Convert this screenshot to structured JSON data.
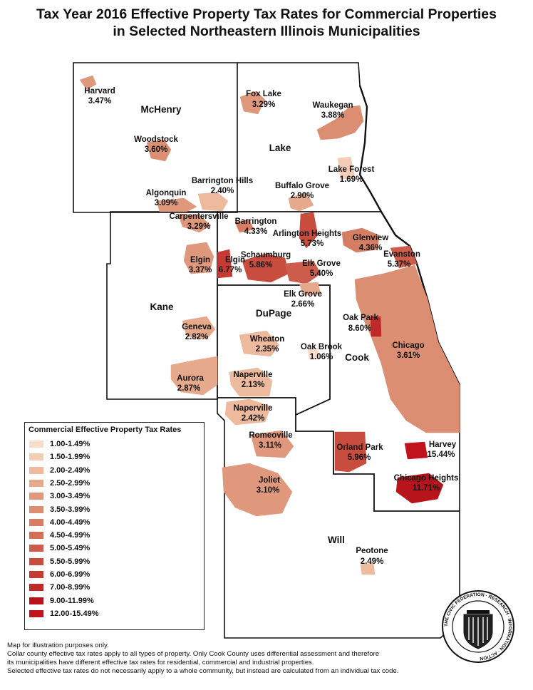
{
  "title": {
    "line1": "Tax Year 2016 Effective Property Tax Rates for Commercial Properties",
    "line2": "in Selected Northeastern Illinois Municipalities"
  },
  "counties": {
    "mchenry": "McHenry",
    "lake": "Lake",
    "kane": "Kane",
    "dupage": "DuPage",
    "cook": "Cook",
    "will": "Will"
  },
  "municipalities": [
    {
      "id": "harvard",
      "name": "Harvard",
      "rate": "3.47%",
      "color": "#E0987D"
    },
    {
      "id": "woodstock",
      "name": "Woodstock",
      "rate": "3.60%",
      "color": "#DC8E73"
    },
    {
      "id": "foxlake",
      "name": "Fox Lake",
      "rate": "3.29%",
      "color": "#E0987D"
    },
    {
      "id": "waukegan",
      "name": "Waukegan",
      "rate": "3.88%",
      "color": "#DC8E73"
    },
    {
      "id": "lakeforest",
      "name": "Lake Forest",
      "rate": "1.69%",
      "color": "#F3CDB6"
    },
    {
      "id": "barringtonhills",
      "name": "Barrington Hills",
      "rate": "2.40%",
      "color": "#EDBA9E"
    },
    {
      "id": "buffalogrove",
      "name": "Buffalo Grove",
      "rate": "2.90%",
      "color": "#E6A98C"
    },
    {
      "id": "algonquin",
      "name": "Algonquin",
      "rate": "3.09%",
      "color": "#E0987D"
    },
    {
      "id": "carpentersville",
      "name": "Carpentersville",
      "rate": "3.29%",
      "color": "#E0987D"
    },
    {
      "id": "barrington",
      "name": "Barrington",
      "rate": "4.33%",
      "color": "#D67E63"
    },
    {
      "id": "arlingtonheights",
      "name": "Arlington Heights",
      "rate": "5.73%",
      "color": "#C94D3F"
    },
    {
      "id": "glenview",
      "name": "Glenview",
      "rate": "4.36%",
      "color": "#D67E63"
    },
    {
      "id": "evanston",
      "name": "Evanston",
      "rate": "5.37%",
      "color": "#CC5D4C"
    },
    {
      "id": "elginkane",
      "name": "Elgin",
      "rate": "3.37%",
      "color": "#E0987D"
    },
    {
      "id": "elgincook",
      "name": "Elgin",
      "rate": "6.77%",
      "color": "#C73A33"
    },
    {
      "id": "schaumburg",
      "name": "Schaumburg",
      "rate": "5.86%",
      "color": "#C94D3F"
    },
    {
      "id": "elkgrovecook",
      "name": "Elk Grove",
      "rate": "5.40%",
      "color": "#CC5D4C"
    },
    {
      "id": "elkgrovedupage",
      "name": "Elk Grove",
      "rate": "2.66%",
      "color": "#E6A98C"
    },
    {
      "id": "oakpark",
      "name": "Oak Park",
      "rate": "8.60%",
      "color": "#BF2A28"
    },
    {
      "id": "geneva",
      "name": "Geneva",
      "rate": "2.82%",
      "color": "#E6A98C"
    },
    {
      "id": "wheaton",
      "name": "Wheaton",
      "rate": "2.35%",
      "color": "#EDBA9E"
    },
    {
      "id": "oakbrook",
      "name": "Oak Brook",
      "rate": "1.06%",
      "color": "#F7DDCB"
    },
    {
      "id": "chicago",
      "name": "Chicago",
      "rate": "3.61%",
      "color": "#DC8E73"
    },
    {
      "id": "aurora",
      "name": "Aurora",
      "rate": "2.87%",
      "color": "#E6A98C"
    },
    {
      "id": "napervilledupage",
      "name": "Naperville",
      "rate": "2.13%",
      "color": "#EDBA9E"
    },
    {
      "id": "napervillewill",
      "name": "Naperville",
      "rate": "2.42%",
      "color": "#EDBA9E"
    },
    {
      "id": "romeoville",
      "name": "Romeoville",
      "rate": "3.11%",
      "color": "#E0987D"
    },
    {
      "id": "orlandpark",
      "name": "Orland Park",
      "rate": "5.96%",
      "color": "#C94D3F"
    },
    {
      "id": "harvey",
      "name": "Harvey",
      "rate": "15.44%",
      "color": "#C0141C"
    },
    {
      "id": "chicagoheights",
      "name": "Chicago Heights",
      "rate": "11.71%",
      "color": "#B8141B"
    },
    {
      "id": "joliet",
      "name": "Joliet",
      "rate": "3.10%",
      "color": "#E0987D"
    },
    {
      "id": "peotone",
      "name": "Peotone",
      "rate": "2.49%",
      "color": "#EDBA9E"
    }
  ],
  "legend": {
    "title": "Commercial Effective Property Tax Rates",
    "items": [
      {
        "label": "1.00-1.49%",
        "color": "#F7DDCB"
      },
      {
        "label": "1.50-1.99%",
        "color": "#F3CDB6"
      },
      {
        "label": "2.00-2.49%",
        "color": "#EDBA9E"
      },
      {
        "label": "2.50-2.99%",
        "color": "#E6A98C"
      },
      {
        "label": "3.00-3.49%",
        "color": "#E0987D"
      },
      {
        "label": "3.50-3.99%",
        "color": "#DC8E73"
      },
      {
        "label": "4.00-4.49%",
        "color": "#D67E63"
      },
      {
        "label": "4.50-4.99%",
        "color": "#D26F57"
      },
      {
        "label": "5.00-5.49%",
        "color": "#CC5D4C"
      },
      {
        "label": "5.50-5.99%",
        "color": "#C94D3F"
      },
      {
        "label": "6.00-6.99%",
        "color": "#C73A33"
      },
      {
        "label": "7.00-8.99%",
        "color": "#BF2A28"
      },
      {
        "label": "9.00-11.99%",
        "color": "#B8141B"
      },
      {
        "label": "12.00-15.49%",
        "color": "#C0141C"
      }
    ]
  },
  "notes": [
    "Map for illustration purposes only.",
    "Collar county effective tax rates apply to all types of property. Only Cook County uses differential assessment and therefore",
    "its municipalities have different effective tax rates for residential, commercial and industrial properties.",
    "Selected effective tax rates do not necessarily apply to a whole community, but instead are calculated  from an individual tax code."
  ],
  "seal": {
    "text": "THE CIVIC FEDERATION · RESEARCH · INFORMATION · ACTION"
  }
}
